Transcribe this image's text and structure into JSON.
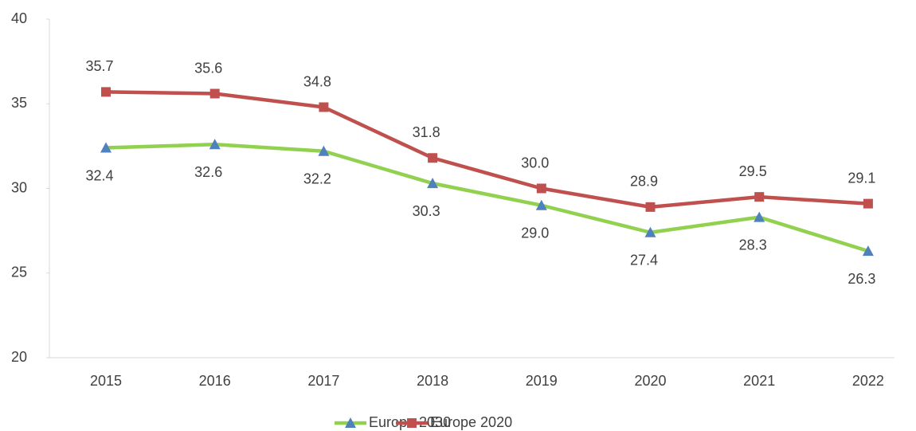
{
  "chart_data": {
    "type": "line",
    "categories": [
      "2015",
      "2016",
      "2017",
      "2018",
      "2019",
      "2020",
      "2021",
      "2022"
    ],
    "series": [
      {
        "name": "Europe 2030",
        "color": "#92d050",
        "marker": "triangle",
        "marker_color": "#4f81bd",
        "label_position": "below",
        "values": [
          32.4,
          32.6,
          32.2,
          30.3,
          29.0,
          27.4,
          28.3,
          26.3
        ],
        "value_labels": [
          "32.4",
          "32.6",
          "32.2",
          "30.3",
          "29.0",
          "27.4",
          "28.3",
          "26.3"
        ]
      },
      {
        "name": "Europe 2020",
        "color": "#c0504d",
        "marker": "square",
        "marker_color": "#c0504d",
        "label_position": "above",
        "values": [
          35.7,
          35.6,
          34.8,
          31.8,
          30.0,
          28.9,
          29.5,
          29.1
        ],
        "value_labels": [
          "35.7",
          "35.6",
          "34.8",
          "31.8",
          "30.0",
          "28.9",
          "29.5",
          "29.1"
        ]
      }
    ],
    "ylim": [
      20,
      40
    ],
    "yticks": [
      20,
      25,
      30,
      35,
      40
    ],
    "legend": "bottom"
  }
}
